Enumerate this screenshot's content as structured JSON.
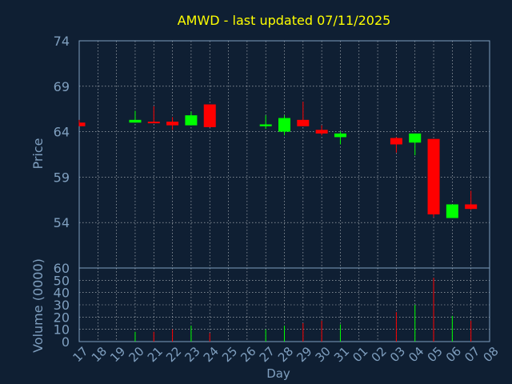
{
  "chart_data": {
    "type": "candlestick",
    "title": "AMWD - last updated 07/11/2025",
    "xlabel": "Day",
    "price_panel": {
      "ylabel": "Price",
      "yticks": [
        54,
        59,
        64,
        69,
        74
      ],
      "ylim": [
        49,
        74
      ],
      "grid": true
    },
    "volume_panel": {
      "ylabel": "Volume (0000)",
      "yticks": [
        0,
        10,
        20,
        30,
        40,
        50,
        60
      ],
      "ylim": [
        0,
        60
      ],
      "grid": true
    },
    "x_labels": [
      "17",
      "18",
      "19",
      "20",
      "21",
      "22",
      "23",
      "24",
      "25",
      "26",
      "27",
      "28",
      "29",
      "30",
      "31",
      "01",
      "02",
      "03",
      "04",
      "05",
      "06",
      "07",
      "08"
    ],
    "candles": [
      {
        "day": "17",
        "open": 65.0,
        "close": 64.6,
        "high": 65.3,
        "low": 64.6,
        "volume": 0
      },
      {
        "day": "20",
        "open": 65.0,
        "close": 65.3,
        "high": 66.3,
        "low": 65.0,
        "volume": 8
      },
      {
        "day": "21",
        "open": 65.1,
        "close": 65.0,
        "high": 66.8,
        "low": 65.0,
        "volume": 8
      },
      {
        "day": "22",
        "open": 65.1,
        "close": 64.7,
        "high": 65.6,
        "low": 64.2,
        "volume": 10
      },
      {
        "day": "23",
        "open": 64.7,
        "close": 65.8,
        "high": 66.2,
        "low": 64.7,
        "volume": 13
      },
      {
        "day": "24",
        "open": 67.0,
        "close": 64.5,
        "high": 67.0,
        "low": 64.5,
        "volume": 7
      },
      {
        "day": "27",
        "open": 64.6,
        "close": 64.8,
        "high": 65.8,
        "low": 64.3,
        "volume": 10
      },
      {
        "day": "28",
        "open": 64.0,
        "close": 65.5,
        "high": 65.8,
        "low": 63.6,
        "volume": 13
      },
      {
        "day": "29",
        "open": 65.3,
        "close": 64.6,
        "high": 67.3,
        "low": 64.6,
        "volume": 15
      },
      {
        "day": "30",
        "open": 64.2,
        "close": 63.8,
        "high": 64.7,
        "low": 63.6,
        "volume": 17
      },
      {
        "day": "31",
        "open": 63.4,
        "close": 63.8,
        "high": 64.0,
        "low": 62.6,
        "volume": 14
      },
      {
        "day": "03",
        "open": 63.3,
        "close": 62.6,
        "high": 63.4,
        "low": 61.7,
        "volume": 24
      },
      {
        "day": "04",
        "open": 62.8,
        "close": 63.8,
        "high": 63.8,
        "low": 61.4,
        "volume": 30
      },
      {
        "day": "05",
        "open": 63.2,
        "close": 54.9,
        "high": 63.2,
        "low": 54.6,
        "volume": 52
      },
      {
        "day": "06",
        "open": 54.5,
        "close": 56.0,
        "high": 56.0,
        "low": 54.5,
        "volume": 21
      },
      {
        "day": "07",
        "open": 56.0,
        "close": 55.5,
        "high": 57.5,
        "low": 55.4,
        "volume": 17
      }
    ],
    "colors": {
      "background": "#0f1f33",
      "axis_text": "#7f9fbf",
      "title_text": "#ffff00",
      "frame": "#7f9fbf",
      "grid": "#ffffff",
      "up": "#00ff00",
      "down": "#ff0000"
    }
  }
}
